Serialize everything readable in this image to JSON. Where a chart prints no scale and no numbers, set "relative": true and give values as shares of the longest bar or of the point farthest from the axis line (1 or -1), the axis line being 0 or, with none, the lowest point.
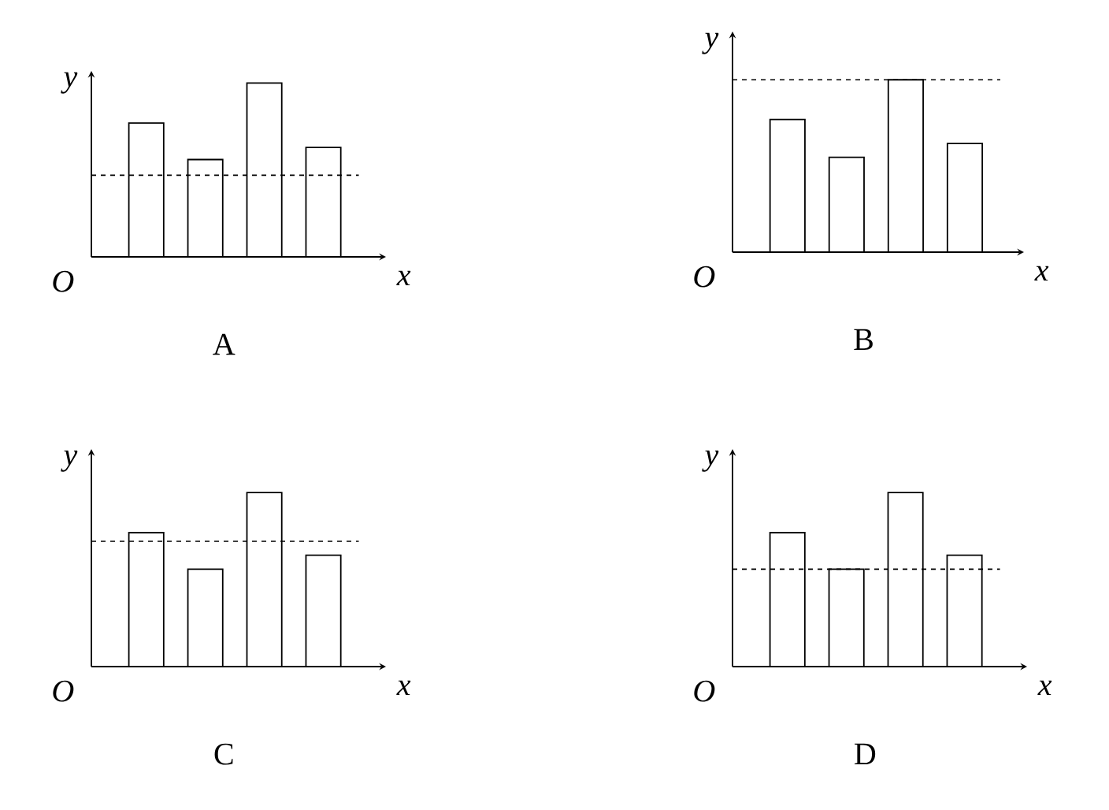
{
  "chart_data": [
    {
      "type": "bar",
      "title": "A",
      "xlabel": "x",
      "ylabel": "y",
      "annotations": [
        "O"
      ],
      "categories": [
        null,
        null,
        null,
        null
      ],
      "values": [
        0.77,
        0.56,
        1,
        0.63
      ],
      "color": "#ffffff",
      "relative": true,
      "ref_lines": [
        {
          "axis": "y",
          "value": 0.47,
          "line_style": "dashed"
        }
      ]
    },
    {
      "type": "bar",
      "title": "B",
      "xlabel": "x",
      "ylabel": "y",
      "annotations": [
        "O"
      ],
      "categories": [
        null,
        null,
        null,
        null
      ],
      "values": [
        0.77,
        0.55,
        1,
        0.63
      ],
      "color": "#ffffff",
      "relative": true,
      "ref_lines": [
        {
          "axis": "y",
          "value": 1,
          "line_style": "dashed"
        }
      ]
    },
    {
      "type": "bar",
      "title": "C",
      "xlabel": "x",
      "ylabel": "y",
      "annotations": [
        "O"
      ],
      "categories": [
        null,
        null,
        null,
        null
      ],
      "values": [
        0.77,
        0.56,
        1,
        0.64
      ],
      "color": "#ffffff",
      "relative": true,
      "ref_lines": [
        {
          "axis": "y",
          "value": 0.72,
          "line_style": "dashed"
        }
      ]
    },
    {
      "type": "bar",
      "title": "D",
      "xlabel": "x",
      "ylabel": "y",
      "annotations": [
        "O"
      ],
      "categories": [
        null,
        null,
        null,
        null
      ],
      "values": [
        0.77,
        0.56,
        1,
        0.64
      ],
      "color": "#ffffff",
      "relative": true,
      "ref_lines": [
        {
          "axis": "y",
          "value": 0.56,
          "line_style": "dashed"
        }
      ]
    }
  ]
}
